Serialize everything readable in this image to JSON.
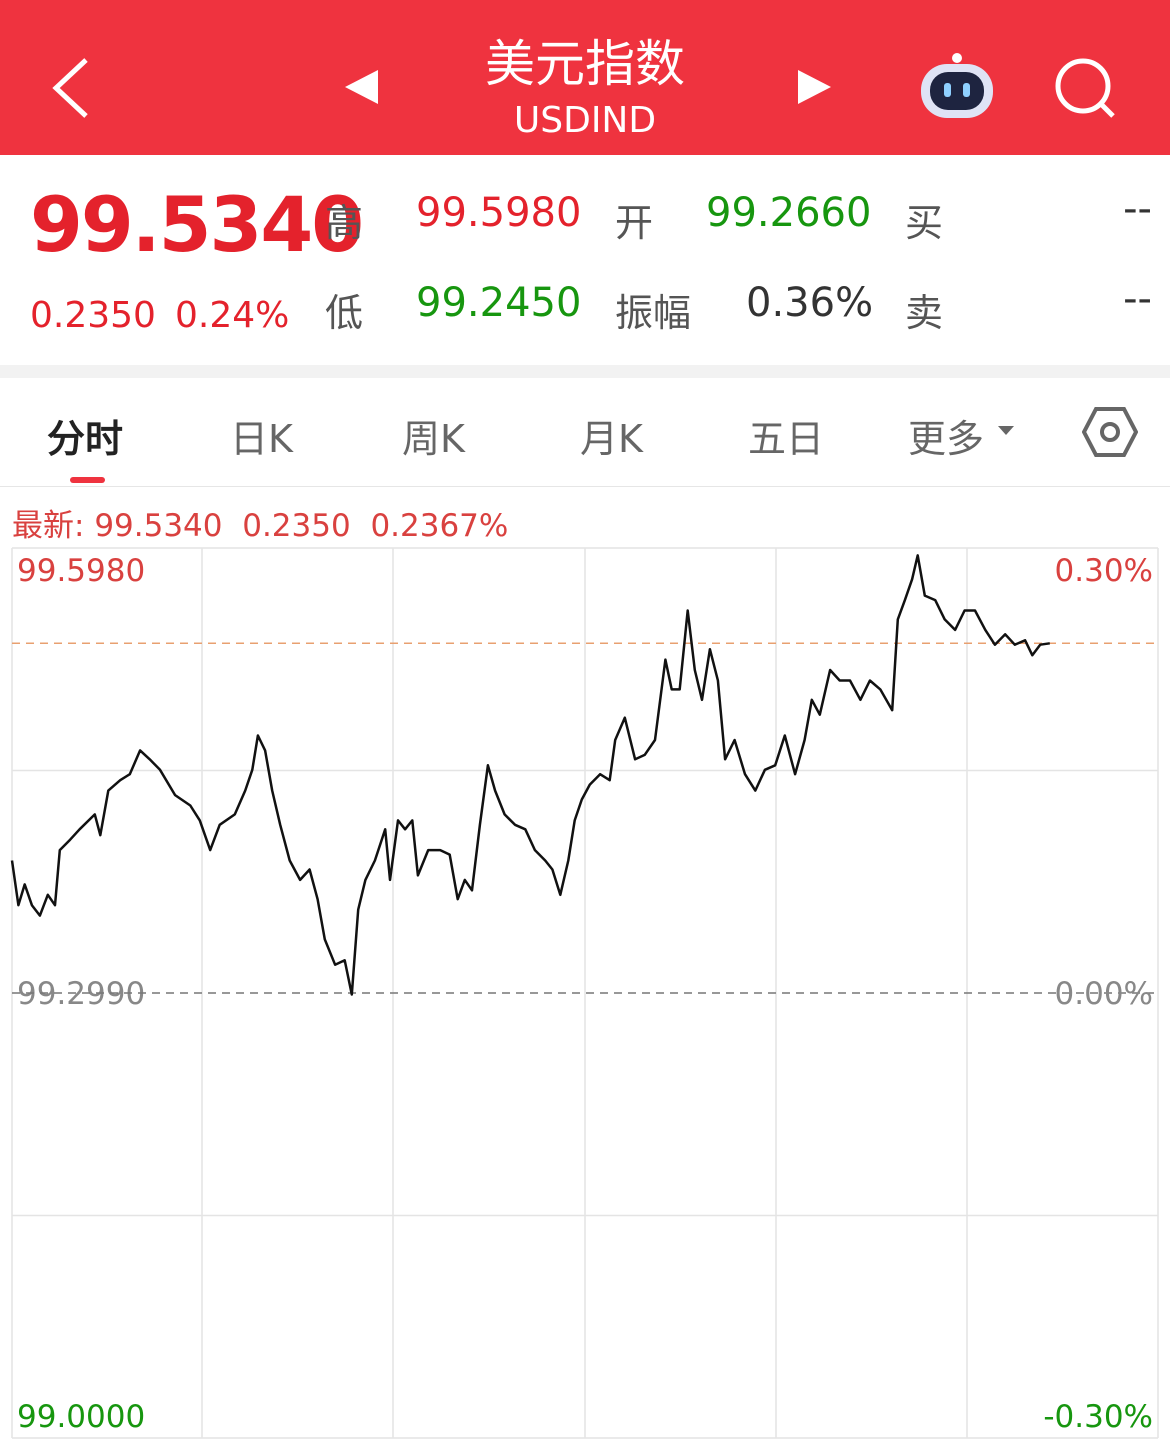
{
  "header": {
    "title": "美元指数",
    "code": "USDIND"
  },
  "quote": {
    "price": "99.5340",
    "change": "0.2350",
    "change_pct": "0.24%",
    "high_label": "高",
    "high": "99.5980",
    "low_label": "低",
    "low": "99.2450",
    "open_label": "开",
    "open": "99.2660",
    "amplitude_label": "振幅",
    "amplitude": "0.36%",
    "buy_label": "买",
    "buy": "--",
    "sell_label": "卖",
    "sell": "--"
  },
  "tabs": [
    "分时",
    "日K",
    "周K",
    "月K",
    "五日",
    "更多"
  ],
  "latest": {
    "label": "最新:",
    "price": "99.5340",
    "change": "0.2350",
    "change_pct": "0.2367%"
  },
  "chart_data": {
    "type": "line",
    "color": "#111111",
    "latest_line": 99.534,
    "latest_color": "#e8a070",
    "xlim": [
      0,
      1440
    ],
    "ylim": [
      99.0,
      99.598
    ],
    "yticks": [
      {
        "value": 99.598,
        "label": "99.5980"
      },
      {
        "value": 99.299,
        "label": "99.2990"
      },
      {
        "value": 99.0,
        "label": "99.0000"
      }
    ],
    "y2lim": [
      -0.3,
      0.3
    ],
    "y2ticks": [
      {
        "value": 0.3,
        "label": "0.30%"
      },
      {
        "value": 0,
        "label": "0.00%"
      },
      {
        "value": -0.3,
        "label": "-0.30%"
      }
    ],
    "x": [
      0,
      8,
      16,
      25,
      35,
      45,
      54,
      60,
      73,
      85,
      104,
      111,
      121,
      136,
      148,
      161,
      173,
      186,
      205,
      224,
      236,
      249,
      261,
      280,
      293,
      302,
      309,
      318,
      327,
      337,
      349,
      362,
      374,
      384,
      393,
      406,
      418,
      427,
      435,
      444,
      456,
      469,
      475,
      485,
      494,
      503,
      510,
      523,
      538,
      550,
      560,
      569,
      578,
      588,
      598,
      607,
      619,
      632,
      645,
      657,
      670,
      679,
      689,
      699,
      707,
      716,
      726,
      739,
      751,
      758,
      770,
      783,
      795,
      808,
      821,
      829,
      839,
      849,
      858,
      867,
      877,
      887,
      896,
      908,
      921,
      934,
      946,
      959,
      971,
      984,
      996,
      1005,
      1015,
      1028,
      1040,
      1053,
      1066,
      1078,
      1091,
      1106,
      1113,
      1122,
      1131,
      1138,
      1147,
      1160,
      1172,
      1185,
      1197,
      1210,
      1223,
      1235,
      1248,
      1260,
      1273,
      1282,
      1292,
      1304
    ],
    "values": [
      99.388,
      99.358,
      99.372,
      99.358,
      99.351,
      99.365,
      99.358,
      99.395,
      99.402,
      99.409,
      99.419,
      99.405,
      99.435,
      99.442,
      99.446,
      99.462,
      99.456,
      99.449,
      99.432,
      99.425,
      99.415,
      99.395,
      99.412,
      99.419,
      99.435,
      99.449,
      99.472,
      99.462,
      99.435,
      99.412,
      99.388,
      99.375,
      99.382,
      99.362,
      99.335,
      99.318,
      99.321,
      99.298,
      99.355,
      99.375,
      99.388,
      99.409,
      99.375,
      99.415,
      99.409,
      99.415,
      99.378,
      99.395,
      99.395,
      99.392,
      99.362,
      99.375,
      99.368,
      99.412,
      99.452,
      99.435,
      99.419,
      99.412,
      99.409,
      99.395,
      99.388,
      99.382,
      99.365,
      99.388,
      99.415,
      99.429,
      99.439,
      99.446,
      99.442,
      99.469,
      99.484,
      99.456,
      99.459,
      99.469,
      99.523,
      99.503,
      99.503,
      99.556,
      99.516,
      99.496,
      99.53,
      99.509,
      99.456,
      99.469,
      99.446,
      99.435,
      99.449,
      99.452,
      99.472,
      99.446,
      99.469,
      99.496,
      99.486,
      99.516,
      99.509,
      99.509,
      99.496,
      99.509,
      99.503,
      99.489,
      99.55,
      99.563,
      99.577,
      99.593,
      99.566,
      99.563,
      99.55,
      99.543,
      99.556,
      99.556,
      99.543,
      99.533,
      99.54,
      99.533,
      99.536,
      99.526,
      99.533,
      99.534
    ]
  }
}
